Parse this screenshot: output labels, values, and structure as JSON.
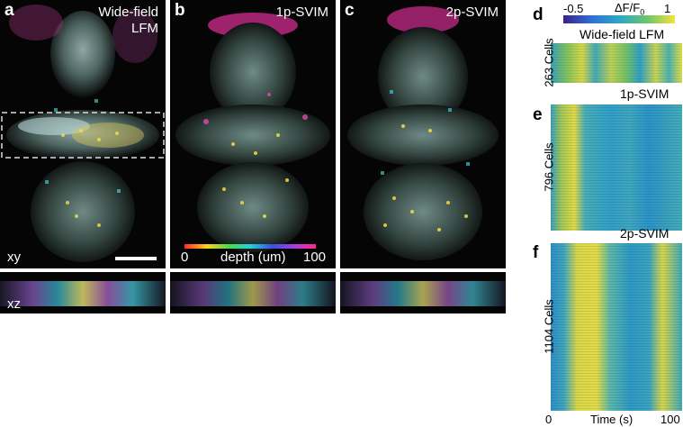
{
  "panels": [
    {
      "letter": "a",
      "title_line1": "Wide-field",
      "title_line2": "LFM"
    },
    {
      "letter": "b",
      "title_line1": "1p-SVIM",
      "title_line2": ""
    },
    {
      "letter": "c",
      "title_line1": "2p-SVIM",
      "title_line2": ""
    }
  ],
  "views": {
    "xy": "xy",
    "xz": "xz"
  },
  "depth_bar": {
    "min": "0",
    "max": "100",
    "label": "depth (um)"
  },
  "colorbar": {
    "min": "-0.5",
    "label_main": "ΔF/F",
    "label_sub": "0",
    "max": "1",
    "colors": [
      "#3b1f8a",
      "#2f6fd3",
      "#2aa8c8",
      "#6cc56a",
      "#f2e23b"
    ]
  },
  "heatmaps": [
    {
      "letter": "d",
      "title": "Wide-field LFM",
      "ylabel": "263 Cells"
    },
    {
      "letter": "e",
      "title": "1p-SVIM",
      "ylabel": "796 Cells"
    },
    {
      "letter": "f",
      "title": "2p-SVIM",
      "ylabel": "1104 Cells"
    }
  ],
  "time_axis": {
    "start": "0",
    "label": "Time (s)",
    "end": "100"
  }
}
